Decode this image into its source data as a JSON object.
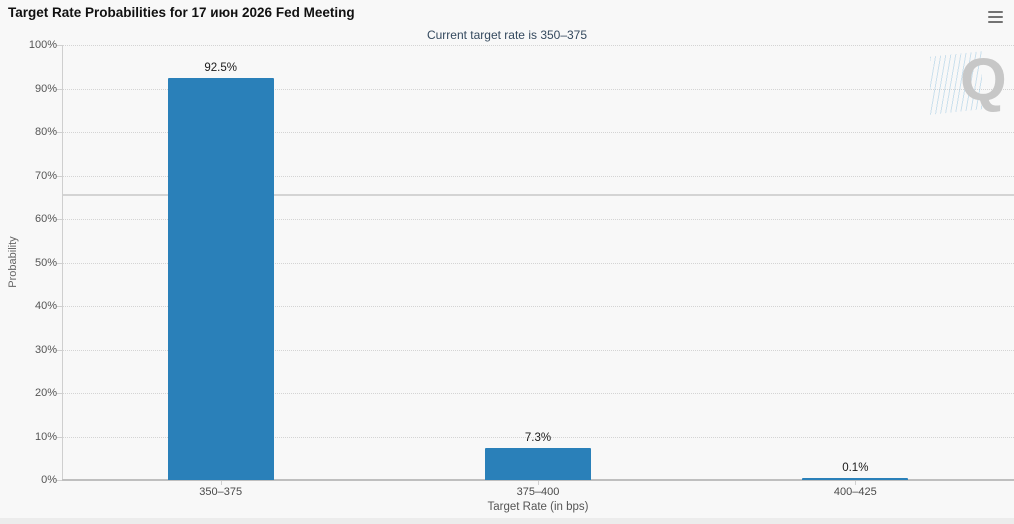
{
  "header": {
    "title": "Target Rate Probabilities for 17 июн 2026 Fed Meeting",
    "subtitle": "Current target rate is 350–375"
  },
  "menu": {
    "icon": "hamburger-menu-icon",
    "tooltip": "Chart context menu"
  },
  "watermark": {
    "letter": "Q"
  },
  "colors": {
    "bar": "#2a80b9",
    "background": "#f8f8f8",
    "subtitle_text": "#34495e",
    "grid": "#d4d4d4",
    "axis": "#bfbfbf"
  },
  "chart_data": {
    "type": "bar",
    "title": "Target Rate Probabilities for 17 июн 2026 Fed Meeting",
    "subtitle": "Current target rate is 350–375",
    "categories": [
      "350–375",
      "375–400",
      "400–425"
    ],
    "values": [
      92.5,
      7.3,
      0.1
    ],
    "data_labels": [
      "92.5%",
      "7.3%",
      "0.1%"
    ],
    "xlabel": "Target Rate (in bps)",
    "ylabel": "Probability",
    "ylim": [
      0,
      100
    ],
    "ytick_step": 10,
    "ytick_suffix": "%",
    "grid": "horizontal-dotted",
    "plot_line_y": 65.5,
    "legend": "none",
    "bar_color": "#2a80b9"
  }
}
